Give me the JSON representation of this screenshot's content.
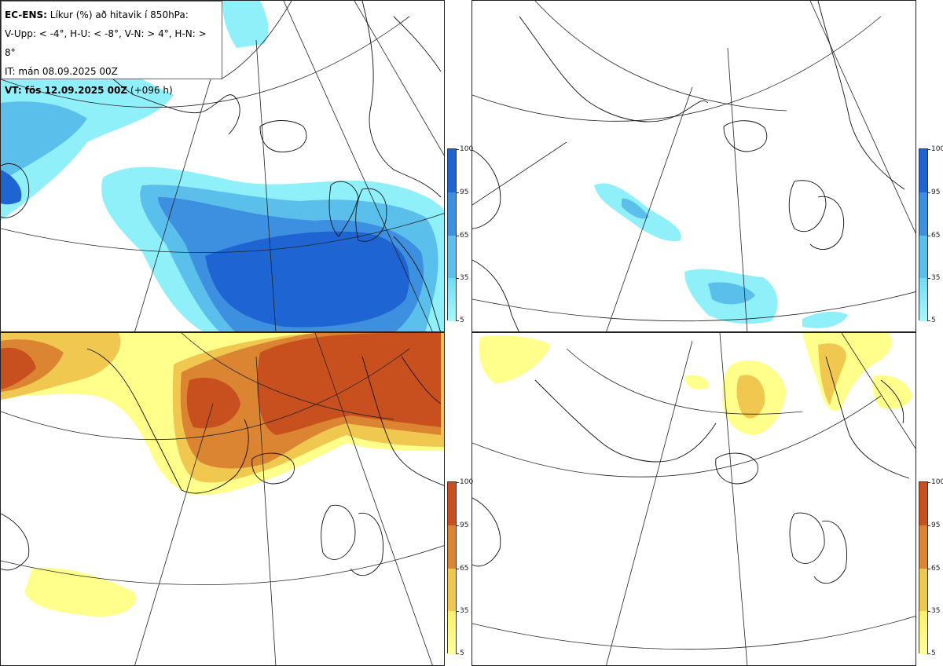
{
  "header": {
    "model": "EC-ENS:",
    "title": "Líkur (%) að hitavik í 850hPa:",
    "categories": "V-Upp: < -4°, H-U: < -8°, V-N: > 4°, H-N: > 8°",
    "initial_time": "IT: mán 08.09.2025 00Z",
    "valid_label": "VT: fös 12.09.2025 00Z",
    "lead_time": "(+096 h)"
  },
  "colorbar": {
    "ticks": [
      "100",
      "95",
      "65",
      "35",
      "5"
    ],
    "cold_colors": [
      "#1e64d2",
      "#3d8fe0",
      "#5bbfec",
      "#8ff0fa"
    ],
    "warm_colors": [
      "#c8501e",
      "#db8432",
      "#f0c850",
      "#ffff8c"
    ]
  },
  "panels": [
    {
      "id": "cold-upper-left",
      "category": "V-Upp",
      "scheme": "cold"
    },
    {
      "id": "cold-upper-right",
      "category": "H-U",
      "scheme": "cold"
    },
    {
      "id": "warm-lower-left",
      "category": "V-N",
      "scheme": "warm"
    },
    {
      "id": "warm-lower-right",
      "category": "H-N",
      "scheme": "warm"
    }
  ]
}
